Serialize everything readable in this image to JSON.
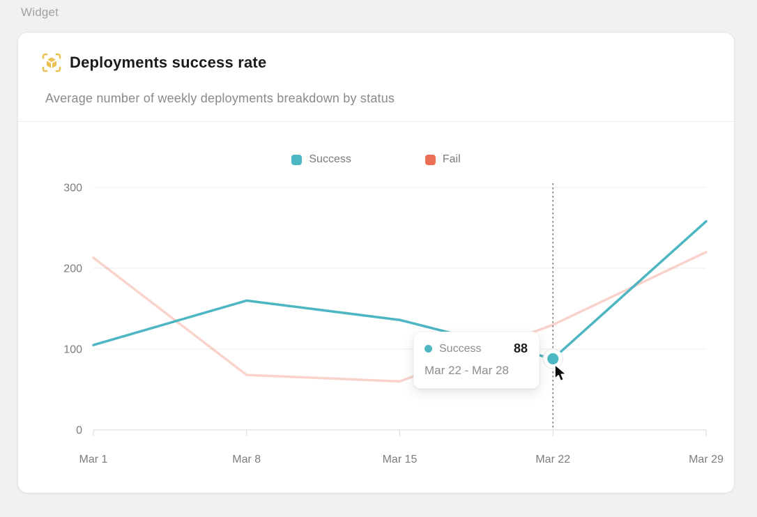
{
  "page": {
    "label": "Widget"
  },
  "card": {
    "title": "Deployments success rate",
    "subtitle": "Average number of weekly deployments breakdown by status",
    "icon": "cube-scan-icon",
    "icon_color": "#ecc153"
  },
  "chart_data": {
    "type": "line",
    "title": "Deployments success rate",
    "categories": [
      "Mar 1",
      "Mar 8",
      "Mar 15",
      "Mar 22",
      "Mar 29"
    ],
    "series": [
      {
        "name": "Success",
        "color": "#4cb6c2",
        "values": [
          105,
          160,
          136,
          88,
          258
        ]
      },
      {
        "name": "Fail",
        "color": "#ec6e54",
        "values": [
          213,
          68,
          60,
          130,
          220
        ],
        "dimmed": true
      }
    ],
    "ylim": [
      0,
      300
    ],
    "yticks": [
      0,
      100,
      200,
      300
    ],
    "ytick_labels": [
      "0",
      "100",
      "200",
      "300"
    ],
    "grid": true,
    "legend_position": "top-center",
    "dimmed_series_opacity": 0.3,
    "emphasis": {
      "series": "Success",
      "category": "Mar 22",
      "value": 88
    },
    "axis_text_color": "#7c7c7c",
    "gridline_color": "#ececec",
    "axis_line_color": "#d8d8d8",
    "crosshair_color": "#5f5f5f"
  },
  "tooltip": {
    "series": "Success",
    "value": "88",
    "range": "Mar 22 - Mar 28"
  }
}
